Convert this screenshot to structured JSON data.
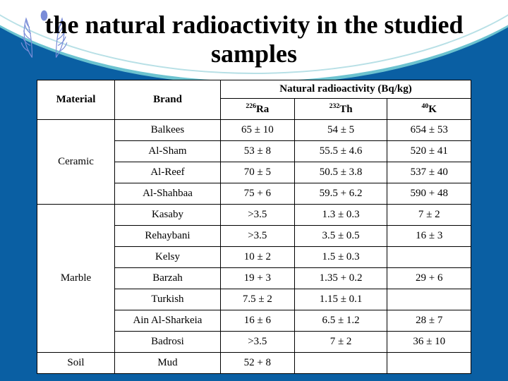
{
  "title": "the natural radioactivity in the studied samples",
  "headers": {
    "material": "Material",
    "brand": "Brand",
    "group": "Natural radioactivity (Bq/kg)",
    "ra_sup": "226",
    "ra": "Ra",
    "th_sup": "232",
    "th": "Th",
    "k_sup": "40",
    "k": "K"
  },
  "groups": [
    {
      "material": "Ceramic",
      "rows": [
        {
          "brand": "Balkees",
          "ra": "65 ± 10",
          "th": "54 ± 5",
          "k": "654 ± 53"
        },
        {
          "brand": "Al-Sham",
          "ra": "53 ± 8",
          "th": "55.5 ± 4.6",
          "k": "520 ± 41"
        },
        {
          "brand": "Al-Reef",
          "ra": "70 ± 5",
          "th": "50.5 ± 3.8",
          "k": "537 ± 40"
        },
        {
          "brand": "Al-Shahbaa",
          "ra": "75 + 6",
          "th": "59.5 + 6.2",
          "k": "590 + 48"
        }
      ]
    },
    {
      "material": "Marble",
      "rows": [
        {
          "brand": "Kasaby",
          "ra": ">3.5",
          "th": "1.3 ± 0.3",
          "k": "7 ± 2"
        },
        {
          "brand": "Rehaybani",
          "ra": ">3.5",
          "th": "3.5 ± 0.5",
          "k": "16 ± 3"
        },
        {
          "brand": "Kelsy",
          "ra": "10 ± 2",
          "th": "1.5 ± 0.3",
          "k": ""
        },
        {
          "brand": "Barzah",
          "ra": "19 + 3",
          "th": "1.35 + 0.2",
          "k": "29 + 6"
        },
        {
          "brand": "Turkish",
          "ra": "7.5 ± 2",
          "th": "1.15 ± 0.1",
          "k": ""
        },
        {
          "brand": "Ain Al-Sharkeia",
          "ra": "16 ± 6",
          "th": "6.5 ± 1.2",
          "k": "28 ± 7"
        },
        {
          "brand": "Badrosi",
          "ra": ">3.5",
          "th": "7 ± 2",
          "k": "36 ± 10"
        }
      ]
    },
    {
      "material": "Soil",
      "rows": [
        {
          "brand": "Mud",
          "ra": "52 + 8",
          "th": "",
          "k": ""
        }
      ]
    }
  ],
  "colors": {
    "background": "#0a5fa3",
    "arc_border": "#6cc3d0",
    "table_bg": "#ffffff",
    "border": "#000000"
  }
}
